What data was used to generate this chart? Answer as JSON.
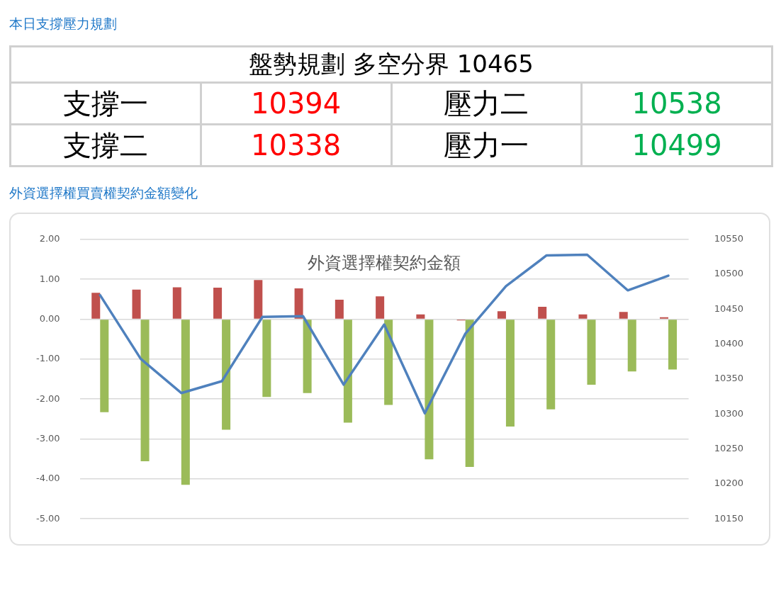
{
  "chart_data": [
    {
      "type": "other",
      "title": "本日支撐壓力規劃",
      "subtitle": "盤勢規劃 多空分界 10465",
      "annotations": [
        "支撐一",
        "10394",
        "壓力二",
        "10538",
        "支撐二",
        "10338",
        "壓力一",
        "10499"
      ],
      "colors": [
        "#000000",
        "#ff0000",
        "#000000",
        "#00b050",
        "#000000",
        "#ff0000",
        "#000000",
        "#00b050"
      ]
    },
    {
      "type": "bar",
      "title": "外資選擇權買賣權契約金額變化",
      "subtitle": "外資選擇權契約金額",
      "categories": [
        null,
        null,
        null,
        null,
        null,
        null,
        null,
        null,
        null,
        null,
        null,
        null,
        null,
        null,
        null
      ],
      "series": [
        {
          "color": "#c0504d",
          "values": [
            0.66,
            0.74,
            0.8,
            0.79,
            0.98,
            0.77,
            0.49,
            0.57,
            0.12,
            -0.03,
            0.2,
            0.31,
            0.12,
            0.18,
            0.05
          ]
        },
        {
          "color": "#9bbb59",
          "values": [
            -2.33,
            -3.56,
            -4.15,
            -2.77,
            -1.95,
            -1.85,
            -2.59,
            -2.15,
            -3.51,
            -3.7,
            -2.69,
            -2.26,
            -1.64,
            -1.31,
            -1.26
          ]
        },
        {
          "type": "line",
          "axis": "y2",
          "color": "#4f81bd",
          "marker": "none",
          "values": [
            10470,
            10379,
            10330,
            10347,
            10439,
            10440,
            10342,
            10428,
            10301,
            10415,
            10483,
            10527,
            10528,
            10477,
            10498
          ]
        }
      ],
      "ylim": [
        -5,
        2
      ],
      "yticks": [
        {
          "value": 2,
          "label": "2.00"
        },
        {
          "value": 1,
          "label": "1.00"
        },
        {
          "value": 0,
          "label": "0.00"
        },
        {
          "value": -1,
          "label": "-1.00"
        },
        {
          "value": -2,
          "label": "-2.00"
        },
        {
          "value": -3,
          "label": "-3.00"
        },
        {
          "value": -4,
          "label": "-4.00"
        },
        {
          "value": -5,
          "label": "-5.00"
        }
      ],
      "y2lim": [
        10150,
        10550
      ],
      "y2ticks": [
        10150,
        10200,
        10250,
        10300,
        10350,
        10400,
        10450,
        10500,
        10550
      ],
      "grid": "y",
      "legend": false
    }
  ]
}
